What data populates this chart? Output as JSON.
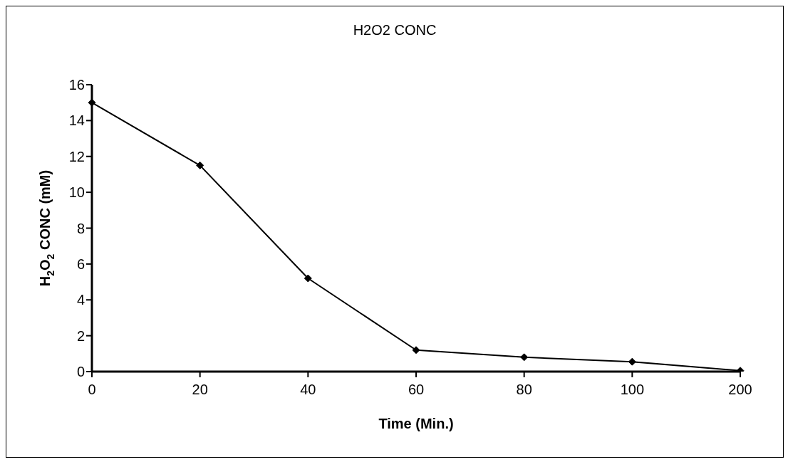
{
  "chart_data": {
    "type": "line",
    "title": "H2O2 CONC",
    "xlabel": "Time (Min.)",
    "ylabel": "H$_{2}$O$_{2}$ CONC (mM)",
    "categories": [
      "0",
      "20",
      "40",
      "60",
      "80",
      "100",
      "200"
    ],
    "series": [
      {
        "color": "#000000",
        "values": [
          15,
          11.5,
          5.2,
          1.2,
          0.8,
          0.55,
          0.05
        ]
      }
    ],
    "ylim": [
      0,
      16
    ],
    "yticks": [
      0,
      2,
      4,
      6,
      8,
      10,
      12,
      14,
      16
    ],
    "grid": false,
    "marker": "diamond",
    "line_style": "solid"
  }
}
